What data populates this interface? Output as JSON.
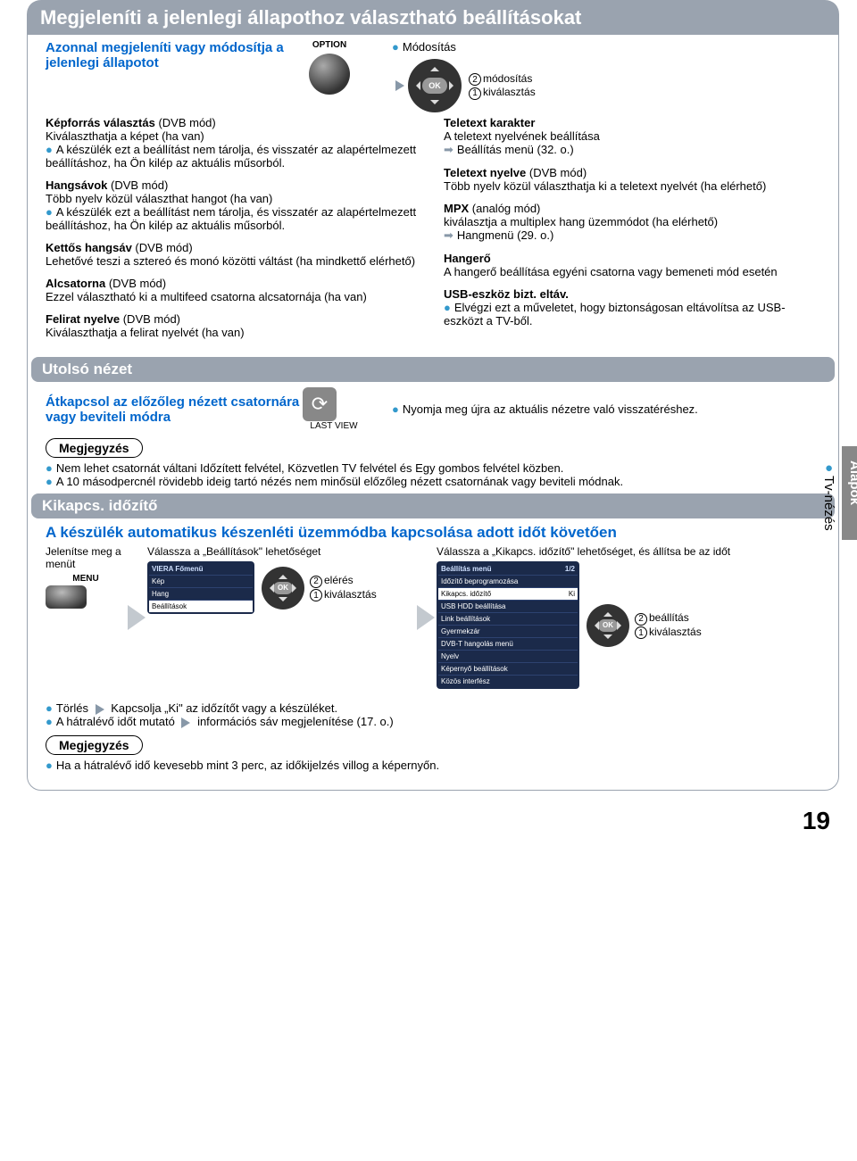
{
  "main": {
    "title": "Megjeleníti a jelenlegi állapothoz választható beállításokat",
    "intro": "Azonnal megjeleníti vagy módosítja a jelenlegi állapotot",
    "option_label": "OPTION",
    "modify_top": "Módosítás",
    "modify": "módosítás",
    "select": "kiválasztás",
    "ok_label": "OK"
  },
  "left": {
    "p1_b": "Képforrás választás",
    "p1_mode": " (DVB mód)",
    "p1_l": "Kiválaszthatja a képet (ha van)",
    "p1_bul": "A készülék ezt a beállítást nem tárolja, és visszatér az alapértelmezett beállításhoz, ha Ön kilép az aktuális műsorból.",
    "p2_b": "Hangsávok",
    "p2_mode": " (DVB mód)",
    "p2_l": "Több nyelv közül választhat hangot (ha van)",
    "p2_bul": "A készülék ezt a beállítást nem tárolja, és visszatér az alapértelmezett beállításhoz, ha Ön kilép az aktuális műsorból.",
    "p3_b": "Kettős hangsáv",
    "p3_mode": " (DVB mód)",
    "p3_l": "Lehetővé teszi a sztereó és monó közötti váltást (ha mindkettő elérhető)",
    "p4_b": "Alcsatorna",
    "p4_mode": " (DVB mód)",
    "p4_l": "Ezzel választható ki a multifeed csatorna alcsatornája (ha van)",
    "p5_b": "Felirat nyelve",
    "p5_mode": " (DVB mód)",
    "p5_l": "Kiválaszthatja a felirat nyelvét (ha van)"
  },
  "right": {
    "p1_b": "Teletext karakter",
    "p1_l": "A teletext nyelvének beállítása",
    "p1_ref": "Beállítás menü (32. o.)",
    "p2_b": "Teletext nyelve",
    "p2_mode": " (DVB mód)",
    "p2_l": "Több nyelv közül választhatja ki a teletext nyelvét (ha elérhető)",
    "p3_b": "MPX",
    "p3_mode": " (analóg mód)",
    "p3_l": "kiválasztja a multiplex hang üzemmódot (ha elérhető)",
    "p3_ref": "Hangmenü (29. o.)",
    "p4_b": "Hangerő",
    "p4_l": "A hangerő beállítása egyéni csatorna vagy bemeneti mód esetén",
    "p5_b": "USB-eszköz bizt. eltáv.",
    "p5_bul": "Elvégzi ezt a műveletet, hogy biztonságosan eltávolítsa az USB-eszközt a TV-ből."
  },
  "lastview": {
    "title": "Utolsó nézet",
    "intro": "Átkapcsol az előzőleg nézett csatornára vagy beviteli módra",
    "icon_label": "LAST VIEW",
    "bul": "Nyomja meg újra az aktuális nézetre való visszatéréshez.",
    "note_label": "Megjegyzés",
    "note_b1": "Nem lehet csatornát váltani Időzített felvétel, Közvetlen TV felvétel és Egy gombos felvétel közben.",
    "note_b2": "A 10 másodpercnél rövidebb ideig tartó nézés nem minősül előzőleg nézett csatornának vagy beviteli módnak."
  },
  "timer": {
    "title": "Kikapcs. időzítő",
    "heading": "A készülék automatikus készenléti üzemmódba kapcsolása adott időt követően",
    "step1": "Jelenítse meg a menüt",
    "menu_label": "MENU",
    "step2": "Válassza a „Beállítások\" lehetőséget",
    "step2_access": "elérés",
    "step2_select": "kiválasztás",
    "step3": "Válassza a „Kikapcs. időzítő\" lehetőséget, és állítsa be az időt",
    "step3_set": "beállítás",
    "step3_select": "kiválasztás",
    "menu1_hdr": "VIERA Főmenü",
    "menu1_items": [
      "Kép",
      "Hang",
      "Beállítások"
    ],
    "menu2_hdr": "Beállítás menü",
    "menu2_page": "1/2",
    "menu2_items": [
      {
        "label": "Időzítő beprogramozása",
        "val": ""
      },
      {
        "label": "Kikapcs. időzítő",
        "val": "Ki",
        "sel": true
      },
      {
        "label": "USB HDD beállítása",
        "val": ""
      },
      {
        "label": "Link beállítások",
        "val": ""
      },
      {
        "label": "Gyermekzár",
        "val": ""
      },
      {
        "label": "DVB-T hangolás menü",
        "val": ""
      },
      {
        "label": "Nyelv",
        "val": ""
      },
      {
        "label": "Képernyő beállítások",
        "val": ""
      },
      {
        "label": "Közös interfész",
        "val": ""
      }
    ],
    "bul1_pre": "Törlés ",
    "bul1_post": " Kapcsolja „Ki\" az időzítőt vagy a készüléket.",
    "bul2_pre": "A hátralévő időt mutató ",
    "bul2_post": " információs sáv megjelenítése (17. o.)",
    "note_label": "Megjegyzés",
    "note_b1": "Ha a hátralévő idő kevesebb mint 3 perc, az időkijelzés villog a képernyőn."
  },
  "side": {
    "dark": "Alapok",
    "light": "Tv-nézés",
    "light_bullet": "●"
  },
  "page_number": "19"
}
